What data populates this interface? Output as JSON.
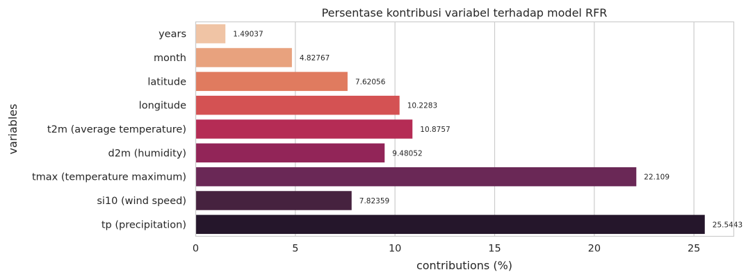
{
  "chart_data": {
    "type": "bar",
    "orientation": "horizontal",
    "title": "Persentase kontribusi variabel terhadap model RFR",
    "xlabel": "contributions (%)",
    "ylabel": "variables",
    "categories": [
      "years",
      "month",
      "latitude",
      "longitude",
      "t2m (average temperature)",
      "d2m (humidity)",
      "tmax (temperature maximum)",
      "si10 (wind speed)",
      "tp (precipitation)"
    ],
    "values": [
      1.49037,
      4.82767,
      7.62056,
      10.2283,
      10.8757,
      9.48052,
      22.109,
      7.82359,
      25.5443
    ],
    "data_labels": [
      "1.49037",
      "4.82767",
      "7.62056",
      "10.2283",
      "10.8757",
      "9.48052",
      "22.109",
      "7.82359",
      "25.5443"
    ],
    "colors": [
      "#f0c4a5",
      "#e8a27e",
      "#e07b5f",
      "#d45253",
      "#b52c55",
      "#922558",
      "#6a2856",
      "#46223f",
      "#25162b"
    ],
    "xlim": [
      0,
      27
    ],
    "xticks": [
      "0",
      "5",
      "10",
      "15",
      "20",
      "25"
    ],
    "grid": "vertical"
  }
}
